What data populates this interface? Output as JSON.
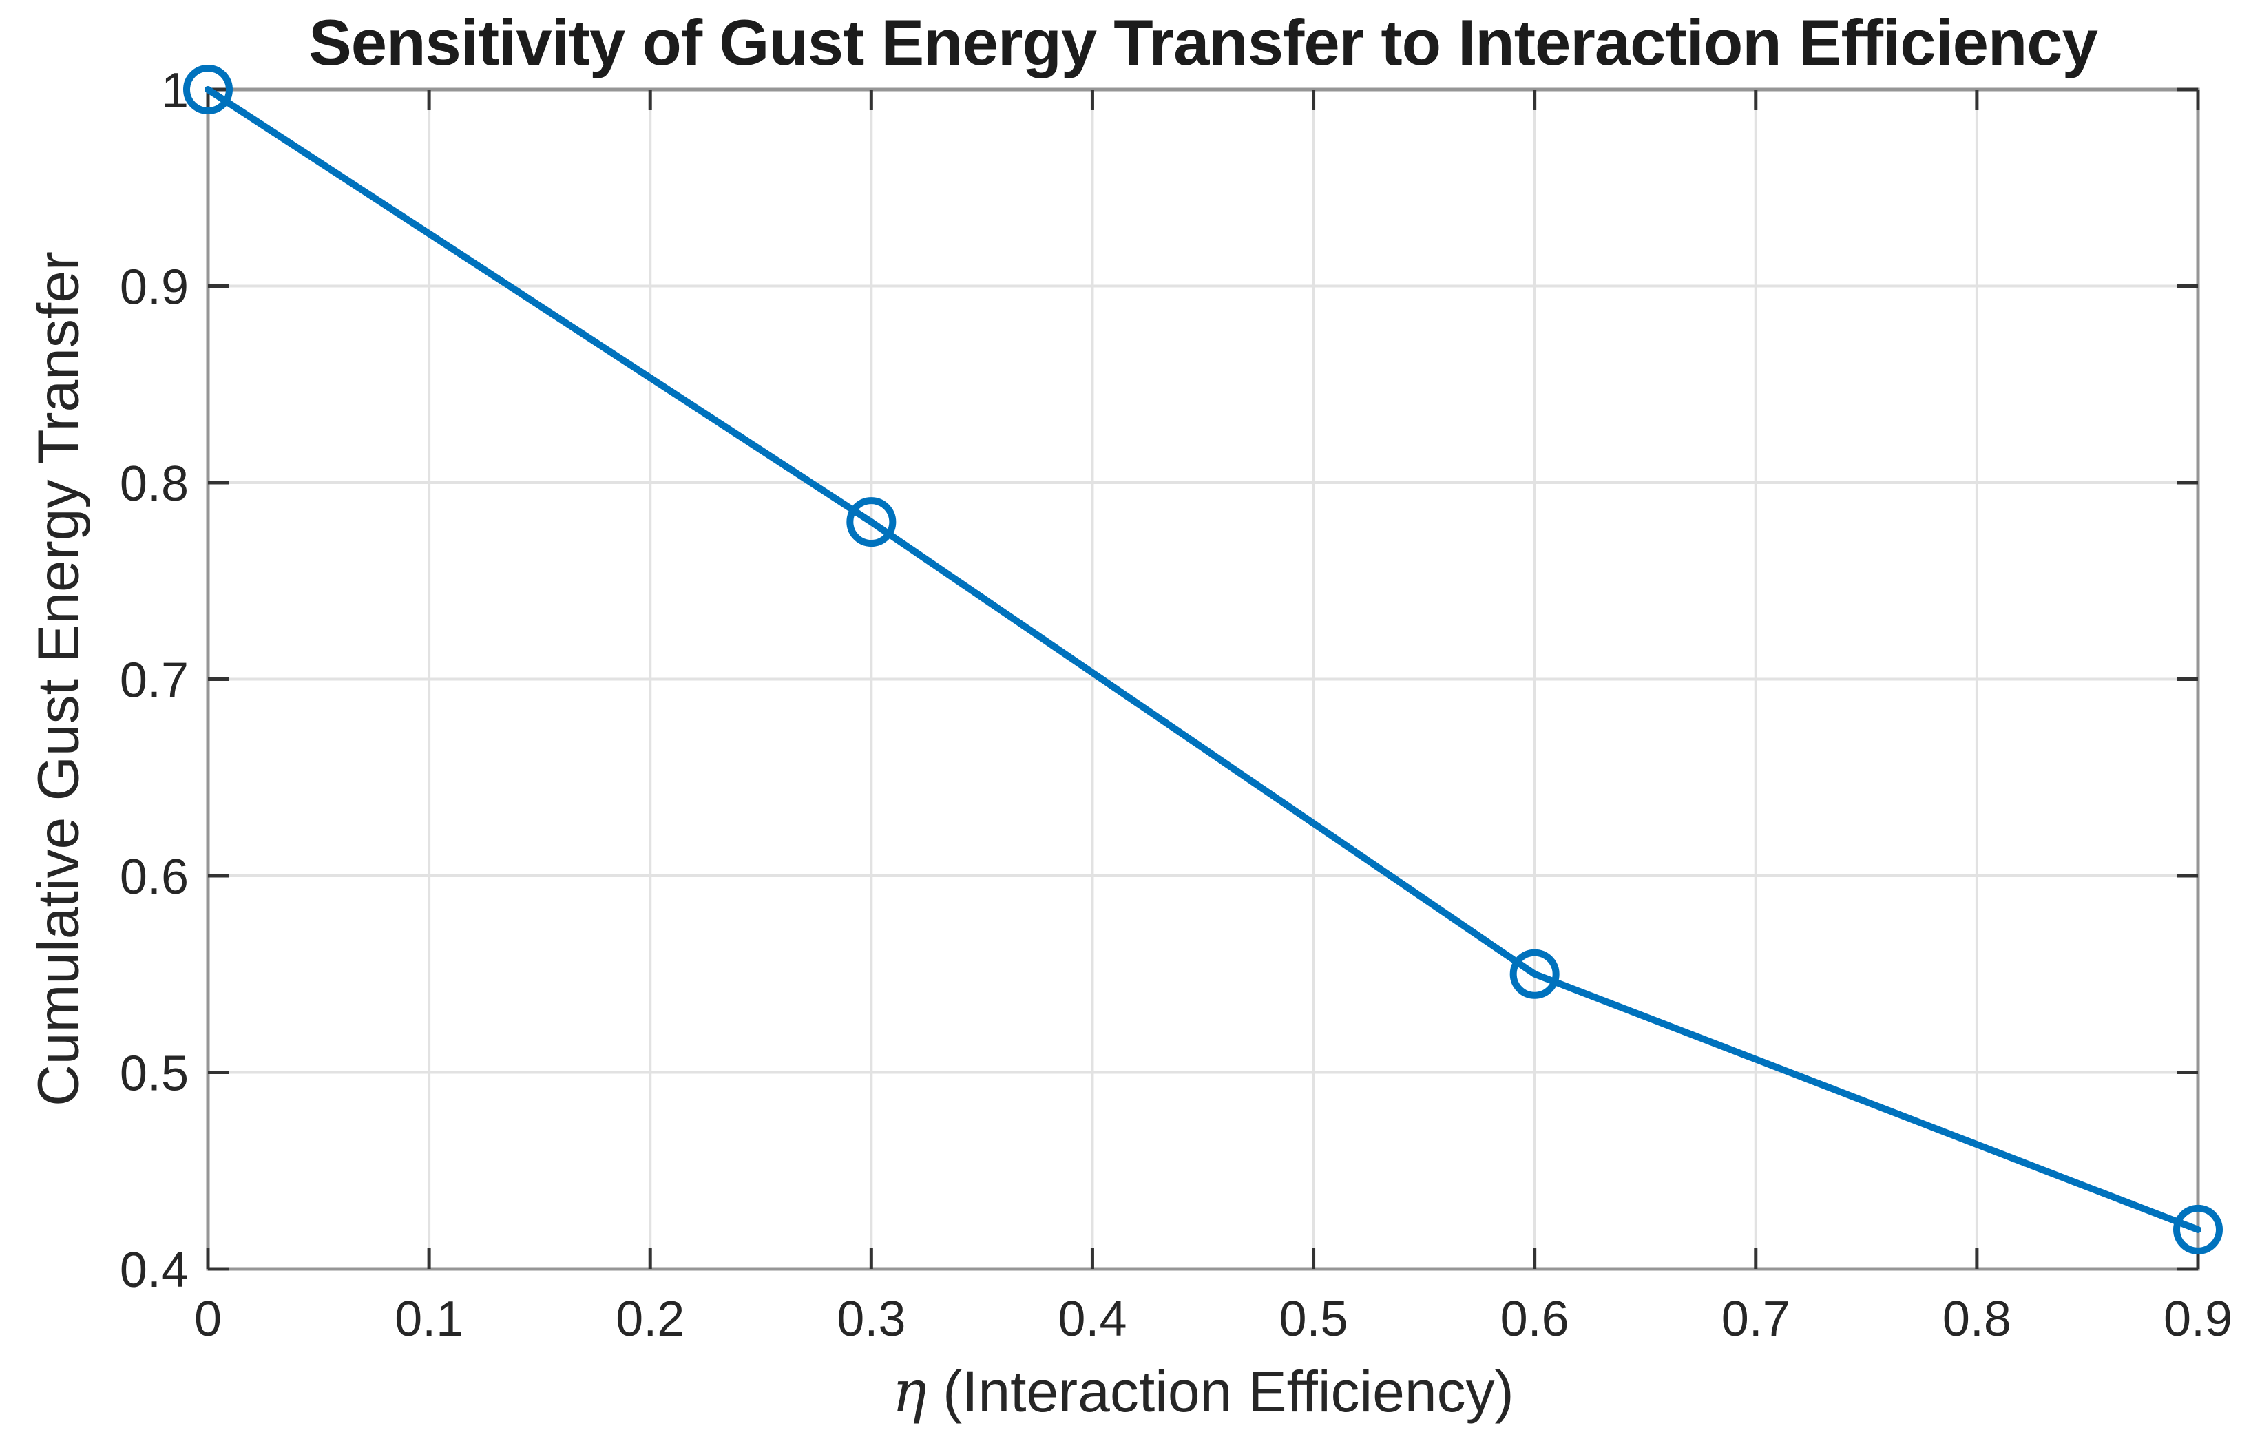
{
  "chart_data": {
    "type": "line",
    "title": "Sensitivity of Gust Energy Transfer to Interaction Efficiency",
    "xlabel_symbol": "η",
    "xlabel_rest": " (Interaction Efficiency)",
    "ylabel": "Cumulative Gust Energy Transfer",
    "series": [
      {
        "name": "cumulative-gust-energy-transfer",
        "x": [
          0,
          0.3,
          0.6,
          0.9
        ],
        "y": [
          1.0,
          0.78,
          0.55,
          0.42
        ]
      }
    ],
    "xlim": [
      0,
      0.9
    ],
    "ylim": [
      0.4,
      1.0
    ],
    "x_ticks": [
      0,
      0.1,
      0.2,
      0.3,
      0.4,
      0.5,
      0.6,
      0.7,
      0.8,
      0.9
    ],
    "x_tick_labels": [
      "0",
      "0.1",
      "0.2",
      "0.3",
      "0.4",
      "0.5",
      "0.6",
      "0.7",
      "0.8",
      "0.9"
    ],
    "y_ticks": [
      0.4,
      0.5,
      0.6,
      0.7,
      0.8,
      0.9,
      1.0
    ],
    "y_tick_labels": [
      "0.4",
      "0.5",
      "0.6",
      "0.7",
      "0.8",
      "0.9",
      "1"
    ],
    "grid": true,
    "legend": "none",
    "marker": "circle-open",
    "colors": {
      "line": "#0072BD",
      "grid": "#E2E2E2",
      "box": "#969696",
      "tick": "#333333",
      "tick_text": "#262626",
      "title_text": "#1c1c1c"
    }
  }
}
